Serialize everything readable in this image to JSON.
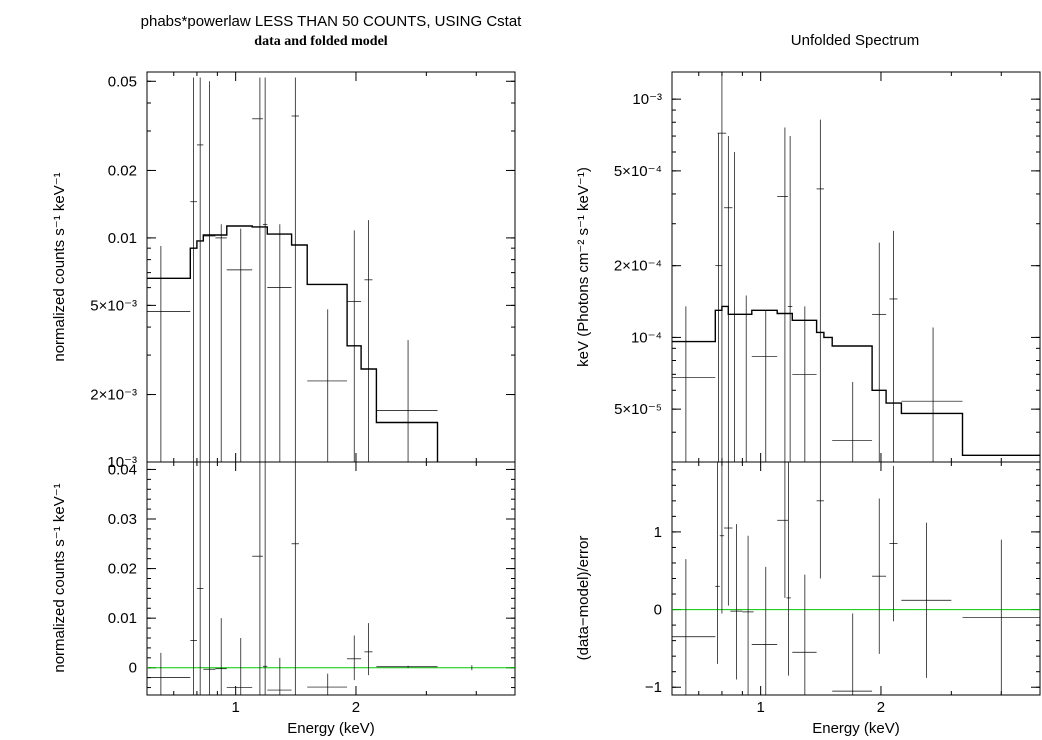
{
  "titles": {
    "left_line1": "phabs*powerlaw LESS THAN 50 COUNTS, USING Cstat",
    "left_line2": "data and folded model",
    "right": "Unfolded Spectrum"
  },
  "colors": {
    "axis": "#000000",
    "data": "#000000",
    "model": "#000000",
    "zero_line": "#00cc00"
  },
  "chart_data": [
    {
      "id": "left-top",
      "type": "line",
      "title": "data and folded model",
      "xlabel": "",
      "ylabel": "normalized counts s⁻¹ keV⁻¹",
      "xscale": "log",
      "yscale": "log",
      "xlim": [
        0.6,
        5.0
      ],
      "ylim": [
        0.001,
        0.055
      ],
      "yticks": [
        0.05,
        0.02,
        0.01,
        0.005,
        0.002,
        0.001
      ],
      "ytick_labels": [
        "0.05",
        "0.02",
        "0.01",
        "5×10⁻³",
        "2×10⁻³",
        "10⁻³"
      ],
      "xticks": [
        1,
        2
      ],
      "xtick_labels": [
        "",
        ""
      ],
      "series": [
        {
          "kind": "errorbar",
          "points": [
            {
              "x": 0.65,
              "xlo": 0.6,
              "xhi": 0.77,
              "y": 0.0047,
              "ylo": 0.001,
              "yhi": 0.0092
            },
            {
              "x": 0.785,
              "xlo": 0.77,
              "xhi": 0.8,
              "y": 0.0145,
              "ylo": 0.001,
              "yhi": 0.052
            },
            {
              "x": 0.815,
              "xlo": 0.8,
              "xhi": 0.83,
              "y": 0.026,
              "ylo": 0.001,
              "yhi": 0.052
            },
            {
              "x": 0.86,
              "xlo": 0.83,
              "xhi": 0.89,
              "y": 0.0102,
              "ylo": 0.001,
              "yhi": 0.05
            },
            {
              "x": 0.92,
              "xlo": 0.89,
              "xhi": 0.95,
              "y": 0.01,
              "ylo": 0.001,
              "yhi": 0.0115
            },
            {
              "x": 1.03,
              "xlo": 0.95,
              "xhi": 1.1,
              "y": 0.0072,
              "ylo": 0.001,
              "yhi": 0.011
            },
            {
              "x": 1.15,
              "xlo": 1.1,
              "xhi": 1.17,
              "y": 0.034,
              "ylo": 0.001,
              "yhi": 0.052
            },
            {
              "x": 1.185,
              "xlo": 1.17,
              "xhi": 1.2,
              "y": 0.0115,
              "ylo": 0.001,
              "yhi": 0.052
            },
            {
              "x": 1.29,
              "xlo": 1.2,
              "xhi": 1.38,
              "y": 0.006,
              "ylo": 0.001,
              "yhi": 0.0115
            },
            {
              "x": 1.41,
              "xlo": 1.38,
              "xhi": 1.44,
              "y": 0.035,
              "ylo": 0.001,
              "yhi": 0.052
            },
            {
              "x": 1.7,
              "xlo": 1.51,
              "xhi": 1.9,
              "y": 0.0023,
              "ylo": 0.001,
              "yhi": 0.0048
            },
            {
              "x": 1.98,
              "xlo": 1.9,
              "xhi": 2.06,
              "y": 0.0052,
              "ylo": 0.001,
              "yhi": 0.0108
            },
            {
              "x": 2.15,
              "xlo": 2.1,
              "xhi": 2.2,
              "y": 0.0065,
              "ylo": 0.001,
              "yhi": 0.012
            },
            {
              "x": 2.7,
              "xlo": 2.25,
              "xhi": 3.2,
              "y": 0.0017,
              "ylo": 0.001,
              "yhi": 0.0035
            }
          ]
        },
        {
          "kind": "step",
          "bins": [
            {
              "x0": 0.6,
              "x1": 0.77,
              "y": 0.0066
            },
            {
              "x0": 0.77,
              "x1": 0.8,
              "y": 0.009
            },
            {
              "x0": 0.8,
              "x1": 0.83,
              "y": 0.0097
            },
            {
              "x0": 0.83,
              "x1": 0.95,
              "y": 0.0103
            },
            {
              "x0": 0.95,
              "x1": 1.1,
              "y": 0.0113
            },
            {
              "x0": 1.1,
              "x1": 1.2,
              "y": 0.0112
            },
            {
              "x0": 1.2,
              "x1": 1.38,
              "y": 0.0104
            },
            {
              "x0": 1.38,
              "x1": 1.51,
              "y": 0.0093
            },
            {
              "x0": 1.51,
              "x1": 1.9,
              "y": 0.0062
            },
            {
              "x0": 1.9,
              "x1": 2.06,
              "y": 0.0033
            },
            {
              "x0": 2.06,
              "x1": 2.25,
              "y": 0.0026
            },
            {
              "x0": 2.25,
              "x1": 3.2,
              "y": 0.0015
            }
          ]
        }
      ]
    },
    {
      "id": "left-bottom",
      "type": "line",
      "xlabel": "Energy (keV)",
      "ylabel": "normalized counts s⁻¹ keV⁻¹",
      "xscale": "log",
      "yscale": "linear",
      "xlim": [
        0.6,
        5.0
      ],
      "ylim": [
        -0.0055,
        0.0415
      ],
      "yticks": [
        0,
        0.01,
        0.02,
        0.03,
        0.04
      ],
      "ytick_labels": [
        "0",
        "0.01",
        "0.02",
        "0.03",
        "0.04"
      ],
      "xticks": [
        1,
        2
      ],
      "xtick_labels": [
        "1",
        "2"
      ],
      "series": [
        {
          "kind": "hline",
          "y": 0
        },
        {
          "kind": "errorbar",
          "points": [
            {
              "x": 0.65,
              "xlo": 0.6,
              "xhi": 0.77,
              "y": -0.002,
              "ylo": -0.0055,
              "yhi": 0.003
            },
            {
              "x": 0.785,
              "xlo": 0.77,
              "xhi": 0.8,
              "y": 0.0055,
              "ylo": -0.0055,
              "yhi": 0.0415
            },
            {
              "x": 0.815,
              "xlo": 0.8,
              "xhi": 0.83,
              "y": 0.016,
              "ylo": -0.0055,
              "yhi": 0.0415
            },
            {
              "x": 0.86,
              "xlo": 0.83,
              "xhi": 0.89,
              "y": -0.0003,
              "ylo": -0.0055,
              "yhi": 0.0415
            },
            {
              "x": 0.92,
              "xlo": 0.89,
              "xhi": 0.95,
              "y": -0.0002,
              "ylo": -0.0055,
              "yhi": 0.01
            },
            {
              "x": 1.03,
              "xlo": 0.95,
              "xhi": 1.1,
              "y": -0.004,
              "ylo": -0.0055,
              "yhi": 0.006
            },
            {
              "x": 1.15,
              "xlo": 1.1,
              "xhi": 1.17,
              "y": 0.0225,
              "ylo": -0.0055,
              "yhi": 0.0415
            },
            {
              "x": 1.185,
              "xlo": 1.17,
              "xhi": 1.2,
              "y": 0.0003,
              "ylo": -0.0055,
              "yhi": 0.0415
            },
            {
              "x": 1.29,
              "xlo": 1.2,
              "xhi": 1.38,
              "y": -0.0045,
              "ylo": -0.0055,
              "yhi": 0.002
            },
            {
              "x": 1.41,
              "xlo": 1.38,
              "xhi": 1.44,
              "y": 0.025,
              "ylo": -0.0055,
              "yhi": 0.0415
            },
            {
              "x": 1.7,
              "xlo": 1.51,
              "xhi": 1.9,
              "y": -0.0039,
              "ylo": -0.0055,
              "yhi": -0.0012
            },
            {
              "x": 1.98,
              "xlo": 1.9,
              "xhi": 2.06,
              "y": 0.0018,
              "ylo": -0.0025,
              "yhi": 0.0065
            },
            {
              "x": 2.15,
              "xlo": 2.1,
              "xhi": 2.2,
              "y": 0.0032,
              "ylo": -0.0015,
              "yhi": 0.009
            },
            {
              "x": 2.7,
              "xlo": 2.25,
              "xhi": 3.2,
              "y": 0.0002,
              "ylo": 0,
              "yhi": 0.0004
            },
            {
              "x": 3.9,
              "xlo": 3.9,
              "xhi": 3.9,
              "y": 0,
              "ylo": -0.0005,
              "yhi": 0.0005
            }
          ]
        }
      ]
    },
    {
      "id": "right-top",
      "type": "line",
      "title": "Unfolded Spectrum",
      "xlabel": "",
      "ylabel": "keV (Photons cm⁻² s⁻¹ keV⁻¹)",
      "xscale": "log",
      "yscale": "log",
      "xlim": [
        0.6,
        5.0
      ],
      "ylim": [
        3e-05,
        0.0013
      ],
      "yticks": [
        0.001,
        0.0005,
        0.0002,
        0.0001,
        5e-05
      ],
      "ytick_labels": [
        "10⁻³",
        "5×10⁻⁴",
        "2×10⁻⁴",
        "10⁻⁴",
        "5×10⁻⁵"
      ],
      "xticks": [
        1,
        2
      ],
      "xtick_labels": [
        "",
        ""
      ],
      "series": [
        {
          "kind": "errorbar",
          "points": [
            {
              "x": 0.65,
              "xlo": 0.6,
              "xhi": 0.77,
              "y": 6.8e-05,
              "ylo": 3e-05,
              "yhi": 0.000135
            },
            {
              "x": 0.785,
              "xlo": 0.77,
              "xhi": 0.8,
              "y": 0.0002,
              "ylo": 3e-05,
              "yhi": 0.00072
            },
            {
              "x": 0.8,
              "xlo": 0.78,
              "xhi": 0.82,
              "y": 0.00072,
              "ylo": 3e-05,
              "yhi": 0.0013
            },
            {
              "x": 0.83,
              "xlo": 0.81,
              "xhi": 0.85,
              "y": 0.00035,
              "ylo": 3e-05,
              "yhi": 0.0007
            },
            {
              "x": 0.86,
              "xlo": 0.83,
              "xhi": 0.89,
              "y": 0.000125,
              "ylo": 3e-05,
              "yhi": 0.0006
            },
            {
              "x": 0.92,
              "xlo": 0.89,
              "xhi": 0.95,
              "y": 0.000125,
              "ylo": 3e-05,
              "yhi": 0.00015
            },
            {
              "x": 1.03,
              "xlo": 0.95,
              "xhi": 1.1,
              "y": 8.3e-05,
              "ylo": 3e-05,
              "yhi": 0.00013
            },
            {
              "x": 1.15,
              "xlo": 1.1,
              "xhi": 1.17,
              "y": 0.00039,
              "ylo": 3e-05,
              "yhi": 0.00076
            },
            {
              "x": 1.185,
              "xlo": 1.17,
              "xhi": 1.2,
              "y": 0.000135,
              "ylo": 3e-05,
              "yhi": 0.0007
            },
            {
              "x": 1.29,
              "xlo": 1.2,
              "xhi": 1.38,
              "y": 7e-05,
              "ylo": 3e-05,
              "yhi": 0.000135
            },
            {
              "x": 1.41,
              "xlo": 1.38,
              "xhi": 1.44,
              "y": 0.00042,
              "ylo": 3e-05,
              "yhi": 0.00082
            },
            {
              "x": 1.7,
              "xlo": 1.51,
              "xhi": 1.9,
              "y": 3.7e-05,
              "ylo": 3e-05,
              "yhi": 6.5e-05
            },
            {
              "x": 1.98,
              "xlo": 1.9,
              "xhi": 2.06,
              "y": 0.000125,
              "ylo": 3e-05,
              "yhi": 0.00025
            },
            {
              "x": 2.15,
              "xlo": 2.1,
              "xhi": 2.2,
              "y": 0.000145,
              "ylo": 3e-05,
              "yhi": 0.00028
            },
            {
              "x": 2.7,
              "xlo": 2.25,
              "xhi": 3.2,
              "y": 5.4e-05,
              "ylo": 3e-05,
              "yhi": 0.00011
            }
          ]
        },
        {
          "kind": "step",
          "bins": [
            {
              "x0": 0.6,
              "x1": 0.77,
              "y": 9.6e-05
            },
            {
              "x0": 0.77,
              "x1": 0.8,
              "y": 0.00013
            },
            {
              "x0": 0.8,
              "x1": 0.83,
              "y": 0.000135
            },
            {
              "x0": 0.83,
              "x1": 0.95,
              "y": 0.000125
            },
            {
              "x0": 0.95,
              "x1": 1.1,
              "y": 0.00013
            },
            {
              "x0": 1.1,
              "x1": 1.2,
              "y": 0.000126
            },
            {
              "x0": 1.2,
              "x1": 1.38,
              "y": 0.000118
            },
            {
              "x0": 1.38,
              "x1": 1.44,
              "y": 0.000105
            },
            {
              "x0": 1.44,
              "x1": 1.51,
              "y": 0.0001
            },
            {
              "x0": 1.51,
              "x1": 1.9,
              "y": 9.2e-05
            },
            {
              "x0": 1.9,
              "x1": 2.06,
              "y": 6e-05
            },
            {
              "x0": 2.06,
              "x1": 2.25,
              "y": 5.3e-05
            },
            {
              "x0": 2.25,
              "x1": 3.2,
              "y": 4.8e-05
            },
            {
              "x0": 3.2,
              "x1": 5.0,
              "y": 3.2e-05
            }
          ]
        }
      ]
    },
    {
      "id": "right-bottom",
      "type": "line",
      "xlabel": "Energy (keV)",
      "ylabel": "(data−model)/error",
      "xscale": "log",
      "yscale": "linear",
      "xlim": [
        0.6,
        5.0
      ],
      "ylim": [
        -1.1,
        1.9
      ],
      "yticks": [
        -1,
        0,
        1
      ],
      "ytick_labels": [
        "−1",
        "0",
        "1"
      ],
      "xticks": [
        1,
        2
      ],
      "xtick_labels": [
        "1",
        "2"
      ],
      "series": [
        {
          "kind": "hline",
          "y": 0
        },
        {
          "kind": "errorbar",
          "points": [
            {
              "x": 0.65,
              "xlo": 0.6,
              "xhi": 0.77,
              "y": -0.35,
              "ylo": -1.1,
              "yhi": 0.65
            },
            {
              "x": 0.78,
              "xlo": 0.77,
              "xhi": 0.79,
              "y": 0.3,
              "ylo": -0.7,
              "yhi": 1.9
            },
            {
              "x": 0.8,
              "xlo": 0.79,
              "xhi": 0.81,
              "y": 0.95,
              "ylo": -0.05,
              "yhi": 1.9
            },
            {
              "x": 0.83,
              "xlo": 0.81,
              "xhi": 0.85,
              "y": 1.05,
              "ylo": 0.05,
              "yhi": 1.9
            },
            {
              "x": 0.87,
              "xlo": 0.84,
              "xhi": 0.9,
              "y": -0.02,
              "ylo": -0.9,
              "yhi": 1.1
            },
            {
              "x": 0.93,
              "xlo": 0.9,
              "xhi": 0.96,
              "y": -0.03,
              "ylo": -1.1,
              "yhi": 0.95
            },
            {
              "x": 1.03,
              "xlo": 0.95,
              "xhi": 1.1,
              "y": -0.45,
              "ylo": -1.1,
              "yhi": 0.55
            },
            {
              "x": 1.15,
              "xlo": 1.1,
              "xhi": 1.17,
              "y": 1.15,
              "ylo": 0.15,
              "yhi": 1.9
            },
            {
              "x": 1.175,
              "xlo": 1.16,
              "xhi": 1.19,
              "y": 0.15,
              "ylo": -0.85,
              "yhi": 1.9
            },
            {
              "x": 1.29,
              "xlo": 1.2,
              "xhi": 1.38,
              "y": -0.55,
              "ylo": -1.1,
              "yhi": 0.45
            },
            {
              "x": 1.41,
              "xlo": 1.38,
              "xhi": 1.44,
              "y": 1.4,
              "ylo": 0.4,
              "yhi": 1.9
            },
            {
              "x": 1.7,
              "xlo": 1.51,
              "xhi": 1.9,
              "y": -1.05,
              "ylo": -1.1,
              "yhi": -0.05
            },
            {
              "x": 1.98,
              "xlo": 1.9,
              "xhi": 2.06,
              "y": 0.43,
              "ylo": -0.57,
              "yhi": 1.43
            },
            {
              "x": 2.15,
              "xlo": 2.1,
              "xhi": 2.2,
              "y": 0.85,
              "ylo": -0.15,
              "yhi": 1.85
            },
            {
              "x": 2.6,
              "xlo": 2.25,
              "xhi": 3.0,
              "y": 0.12,
              "ylo": -0.88,
              "yhi": 1.12
            },
            {
              "x": 4.0,
              "xlo": 3.2,
              "xhi": 5.0,
              "y": -0.1,
              "ylo": -1.1,
              "yhi": 0.9
            }
          ]
        }
      ]
    }
  ]
}
